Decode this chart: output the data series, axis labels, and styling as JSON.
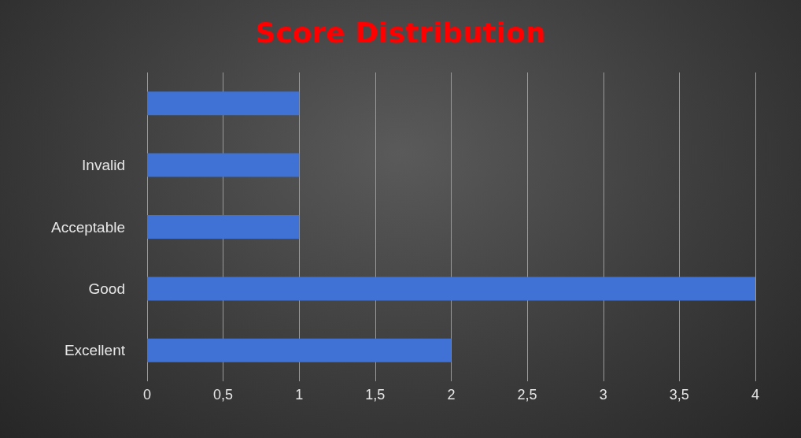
{
  "chart_data": {
    "type": "bar",
    "orientation": "horizontal",
    "title": "Score Distribution",
    "categories": [
      null,
      "Invalid",
      "Acceptable",
      "Good",
      "Excellent"
    ],
    "values": [
      1,
      1,
      1,
      4,
      2
    ],
    "color": "#3f72d4",
    "xlim": [
      0,
      4
    ],
    "xticks": [
      0,
      {
        "value": 0.5,
        "label": "0,5"
      },
      1,
      {
        "value": 1.5,
        "label": "1,5"
      },
      2,
      {
        "value": 2.5,
        "label": "2,5"
      },
      3,
      {
        "value": 3.5,
        "label": "3,5"
      },
      4
    ],
    "grid": "x"
  }
}
